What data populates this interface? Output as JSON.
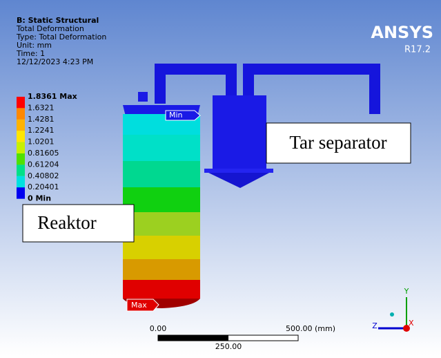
{
  "header": {
    "lines": [
      "B: Static Structural",
      "Total Deformation",
      "Type: Total Deformation",
      "Unit: mm",
      "Time: 1",
      "12/12/2023 4:23 PM"
    ]
  },
  "logo": {
    "name": "ANSYS",
    "version": "R17.2"
  },
  "legend": {
    "labels": [
      "1.8361 Max",
      "1.6321",
      "1.4281",
      "1.2241",
      "1.0201",
      "0.81605",
      "0.61204",
      "0.40802",
      "0.20401",
      "0 Min"
    ]
  },
  "tags": {
    "min": "Min",
    "max": "Max"
  },
  "annotations": {
    "separator": "Tar separator",
    "reactor": "Reaktor"
  },
  "scale": {
    "left": "0.00",
    "right": "500.00 (mm)",
    "middle": "250.00"
  },
  "triad": {
    "y": "Y",
    "z": "Z",
    "x": "X"
  }
}
